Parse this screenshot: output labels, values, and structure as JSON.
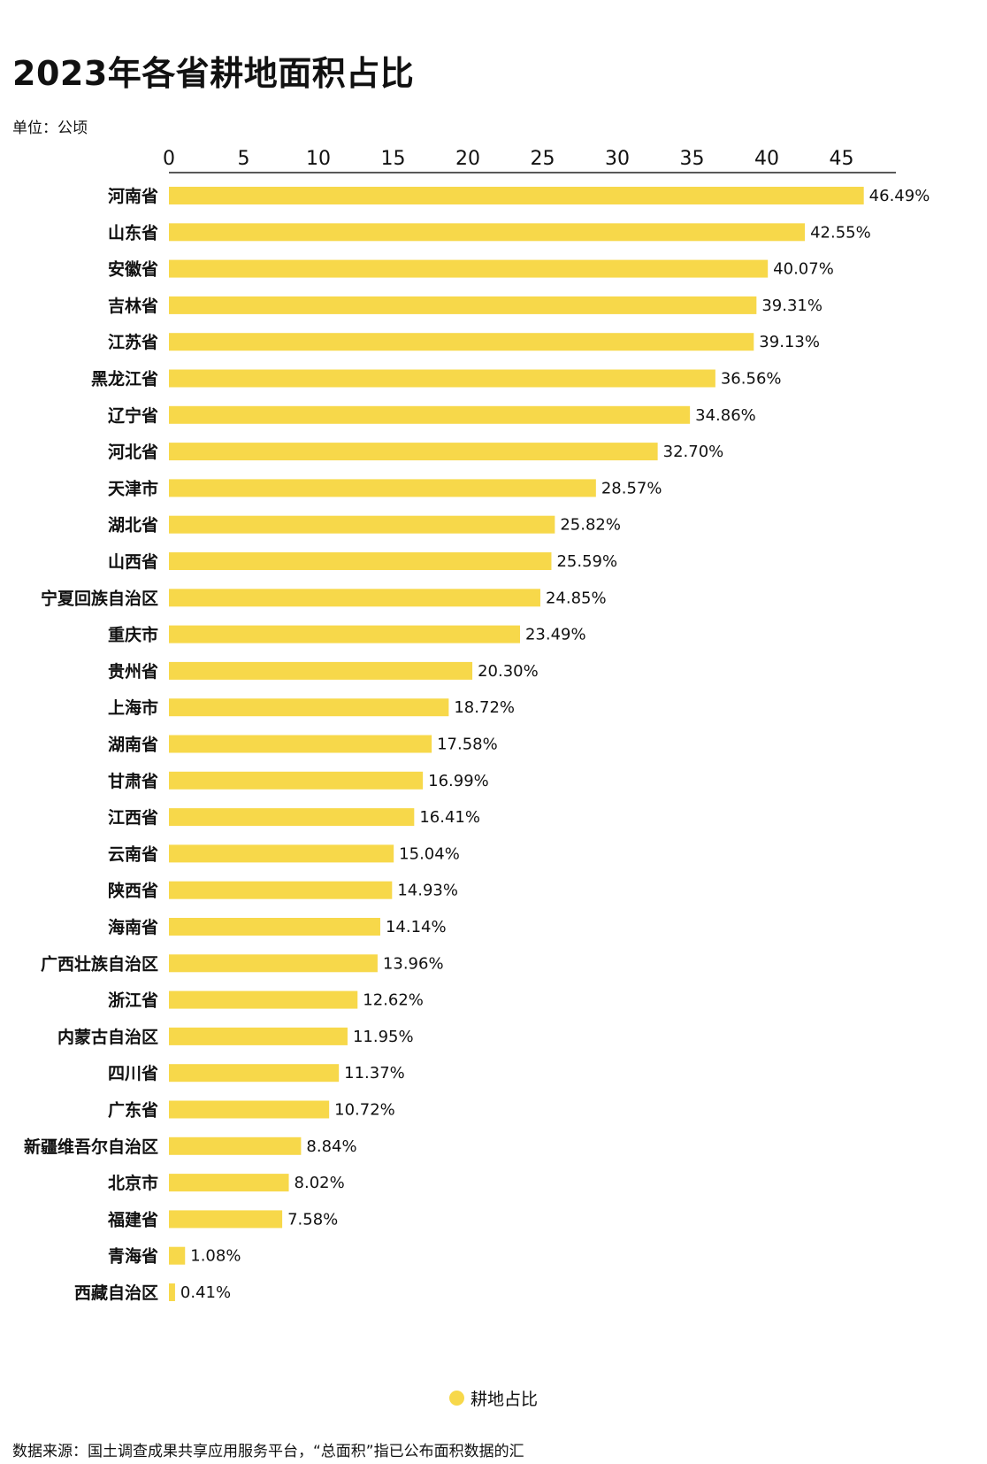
{
  "unit": "单位：公顷",
  "source": "数据来源：国土调查成果共享应用服务平台，“总面积”指已公布面积数据的汇",
  "chart_data": {
    "type": "bar",
    "orientation": "horizontal",
    "title": "2023年各省耕地面积占比",
    "bar_color": "#f7d84a",
    "xlim": [
      0,
      48
    ],
    "x_ticks": [
      0,
      5,
      10,
      15,
      20,
      25,
      30,
      35,
      40,
      45
    ],
    "legend": {
      "label": "耕地占比",
      "position": "bottom-center"
    },
    "categories": [
      "河南省",
      "山东省",
      "安徽省",
      "吉林省",
      "江苏省",
      "黑龙江省",
      "辽宁省",
      "河北省",
      "天津市",
      "湖北省",
      "山西省",
      "宁夏回族自治区",
      "重庆市",
      "贵州省",
      "上海市",
      "湖南省",
      "甘肃省",
      "江西省",
      "云南省",
      "陕西省",
      "海南省",
      "广西壮族自治区",
      "浙江省",
      "内蒙古自治区",
      "四川省",
      "广东省",
      "新疆维吾尔自治区",
      "北京市",
      "福建省",
      "青海省",
      "西藏自治区"
    ],
    "values": [
      46.49,
      42.55,
      40.07,
      39.31,
      39.13,
      36.56,
      34.86,
      32.7,
      28.57,
      25.82,
      25.59,
      24.85,
      23.49,
      20.3,
      18.72,
      17.58,
      16.99,
      16.41,
      15.04,
      14.93,
      14.14,
      13.96,
      12.62,
      11.95,
      11.37,
      10.72,
      8.84,
      8.02,
      7.58,
      1.08,
      0.41
    ],
    "value_labels": [
      "46.49%",
      "42.55%",
      "40.07%",
      "39.31%",
      "39.13%",
      "36.56%",
      "34.86%",
      "32.70%",
      "28.57%",
      "25.82%",
      "25.59%",
      "24.85%",
      "23.49%",
      "20.30%",
      "18.72%",
      "17.58%",
      "16.99%",
      "16.41%",
      "15.04%",
      "14.93%",
      "14.14%",
      "13.96%",
      "12.62%",
      "11.95%",
      "11.37%",
      "10.72%",
      "8.84%",
      "8.02%",
      "7.58%",
      "1.08%",
      "0.41%"
    ]
  }
}
